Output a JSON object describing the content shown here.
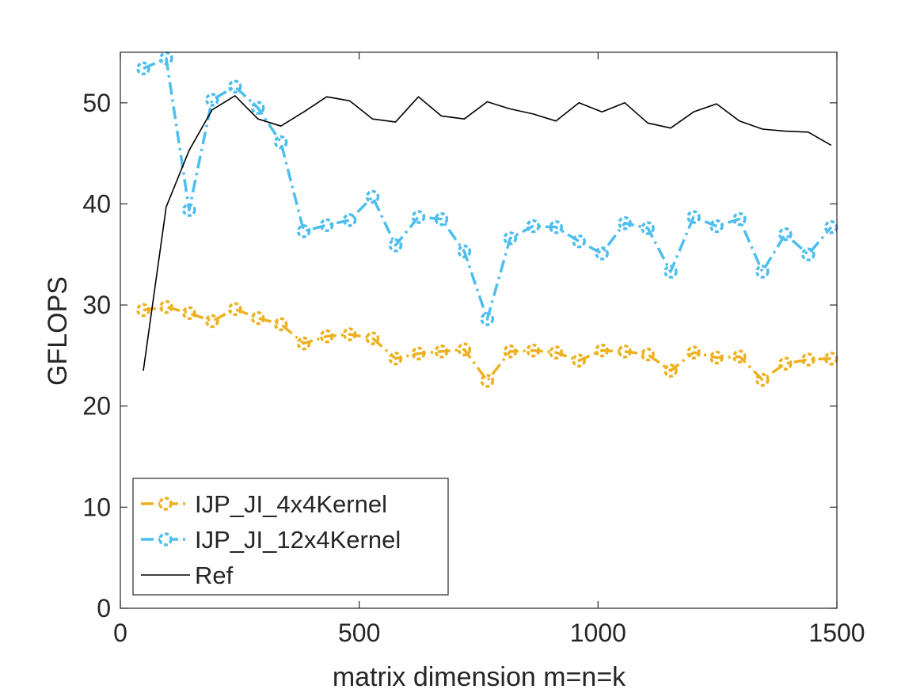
{
  "chart_data": {
    "type": "line",
    "title": "",
    "xlabel": "matrix dimension m=n=k",
    "ylabel": "GFLOPS",
    "xlim": [
      0,
      1500
    ],
    "ylim": [
      0,
      55
    ],
    "xticks": [
      0,
      500,
      1000,
      1500
    ],
    "yticks": [
      0,
      10,
      20,
      30,
      40,
      50
    ],
    "xtick_labels": [
      "0",
      "500",
      "1000",
      "1500"
    ],
    "ytick_labels": [
      "0",
      "10",
      "20",
      "30",
      "40",
      "50"
    ],
    "grid": false,
    "legend_position": "bottom-left",
    "series": [
      {
        "name": "IJP_JI_4x4Kernel",
        "color": "#EDB120",
        "line_style": "dash-dot",
        "marker": "circle",
        "x": [
          48,
          96,
          144,
          192,
          240,
          288,
          336,
          384,
          432,
          480,
          528,
          576,
          624,
          672,
          720,
          768,
          816,
          864,
          912,
          960,
          1008,
          1056,
          1104,
          1152,
          1200,
          1248,
          1296,
          1344,
          1392,
          1440,
          1488
        ],
        "values": [
          29.5,
          29.8,
          29.2,
          28.4,
          29.6,
          28.7,
          28.1,
          26.2,
          26.9,
          27.1,
          26.7,
          24.7,
          25.2,
          25.4,
          25.6,
          22.5,
          25.4,
          25.5,
          25.3,
          24.5,
          25.5,
          25.4,
          25.1,
          23.5,
          25.3,
          24.8,
          24.9,
          22.6,
          24.2,
          24.6,
          24.7
        ]
      },
      {
        "name": "IJP_JI_12x4Kernel",
        "color": "#4DBEEE",
        "line_style": "dash-dot",
        "marker": "circle",
        "x": [
          48,
          96,
          144,
          192,
          240,
          288,
          336,
          384,
          432,
          480,
          528,
          576,
          624,
          672,
          720,
          768,
          816,
          864,
          912,
          960,
          1008,
          1056,
          1104,
          1152,
          1200,
          1248,
          1296,
          1344,
          1392,
          1440,
          1488
        ],
        "values": [
          53.4,
          54.4,
          39.4,
          50.3,
          51.6,
          49.5,
          46.1,
          37.3,
          37.9,
          38.4,
          40.7,
          35.9,
          38.7,
          38.5,
          35.3,
          28.6,
          36.6,
          37.8,
          37.7,
          36.3,
          35.1,
          38.1,
          37.6,
          33.3,
          38.7,
          37.8,
          38.5,
          33.3,
          37.0,
          35.0,
          37.7
        ]
      },
      {
        "name": "Ref",
        "color": "#000000",
        "line_style": "solid",
        "marker": "none",
        "x": [
          48,
          96,
          144,
          192,
          240,
          288,
          336,
          384,
          432,
          480,
          528,
          576,
          624,
          672,
          720,
          768,
          816,
          864,
          912,
          960,
          1008,
          1056,
          1104,
          1152,
          1200,
          1248,
          1296,
          1344,
          1392,
          1440,
          1488
        ],
        "values": [
          23.5,
          39.7,
          45.3,
          49.3,
          50.7,
          48.4,
          47.7,
          49.1,
          50.6,
          50.2,
          48.4,
          48.1,
          50.6,
          48.7,
          48.4,
          50.1,
          49.4,
          48.9,
          48.2,
          50.0,
          49.1,
          50.0,
          48.0,
          47.5,
          49.1,
          49.9,
          48.2,
          47.4,
          47.2,
          47.1,
          45.8
        ]
      }
    ]
  }
}
